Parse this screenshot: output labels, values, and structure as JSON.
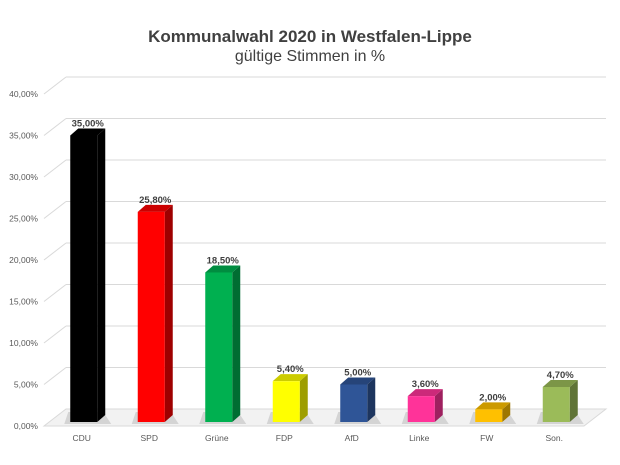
{
  "chart_data": {
    "type": "bar",
    "title": "Kommunalwahl 2020 in Westfalen-Lippe",
    "subtitle": "gültige Stimmen in %",
    "categories": [
      "CDU",
      "SPD",
      "Grüne",
      "FDP",
      "AfD",
      "Linke",
      "FW",
      "Son."
    ],
    "values": [
      35.0,
      25.8,
      18.5,
      5.4,
      5.0,
      3.6,
      2.0,
      4.7
    ],
    "data_labels": [
      "35,00%",
      "25,80%",
      "18,50%",
      "5,40%",
      "5,00%",
      "3,60%",
      "2,00%",
      "4,70%"
    ],
    "y_ticks": [
      "0,00%",
      "5,00%",
      "10,00%",
      "15,00%",
      "20,00%",
      "25,00%",
      "30,00%",
      "35,00%",
      "40,00%"
    ],
    "ylim": [
      0,
      40
    ],
    "grid": true,
    "legend": "none",
    "colors": [
      "#000000",
      "#ff0000",
      "#00b050",
      "#ffff00",
      "#2f5597",
      "#ff3399",
      "#ffc000",
      "#9bbb59"
    ]
  }
}
